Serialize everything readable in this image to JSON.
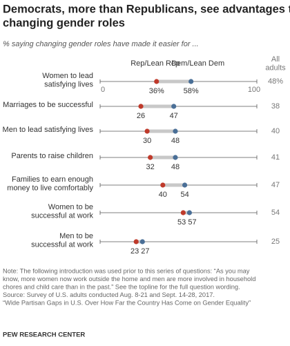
{
  "chart_data": {
    "type": "dot",
    "title": [
      "Democrats, more than Republicans, see advantages to",
      "changing gender roles"
    ],
    "subtitle": "% saying changing gender roles have made it easier for ...",
    "categories": [
      "Women to lead\nsatisfying lives",
      "Marriages to be successful",
      "Men to lead satisfying lives",
      "Parents to raise children",
      "Families to earn enough\nmoney to live comfortably",
      "Women to be\nsuccessful at work",
      "Men to be\nsuccessful at work"
    ],
    "series": [
      {
        "name": "Rep/Lean Rep",
        "color": "#bf3a2b",
        "values": [
          36,
          26,
          30,
          32,
          40,
          53,
          23
        ],
        "value_labels": [
          "36%",
          "26",
          "30",
          "32",
          "40",
          "53",
          "23"
        ]
      },
      {
        "name": "Dem/Lean Dem",
        "color": "#4a6f97",
        "values": [
          58,
          47,
          48,
          48,
          54,
          57,
          27
        ],
        "value_labels": [
          "58%",
          "47",
          "48",
          "48",
          "54",
          "57",
          "27"
        ]
      },
      {
        "name": "All\nadults",
        "color": "#777777",
        "values": [
          48,
          38,
          40,
          41,
          47,
          54,
          25
        ],
        "value_labels": [
          "48%",
          "38",
          "40",
          "41",
          "47",
          "54",
          "25"
        ]
      }
    ],
    "xlim": [
      0,
      100
    ],
    "xticks": [
      0,
      100
    ],
    "note": [
      "Note: The following introduction was used prior to this series of questions: “As you may",
      "know, more women now work outside the home and men are more involved in household",
      "chores and child care than in the past.” See the topline for the full question wording.",
      "Source: Survey of U.S. adults conducted Aug. 8-21 and Sept. 14-28, 2017.",
      "“Wide Partisan Gaps in U.S. Over How Far the Country Has Come on Gender Equality”"
    ],
    "source": "PEW RESEARCH CENTER"
  }
}
